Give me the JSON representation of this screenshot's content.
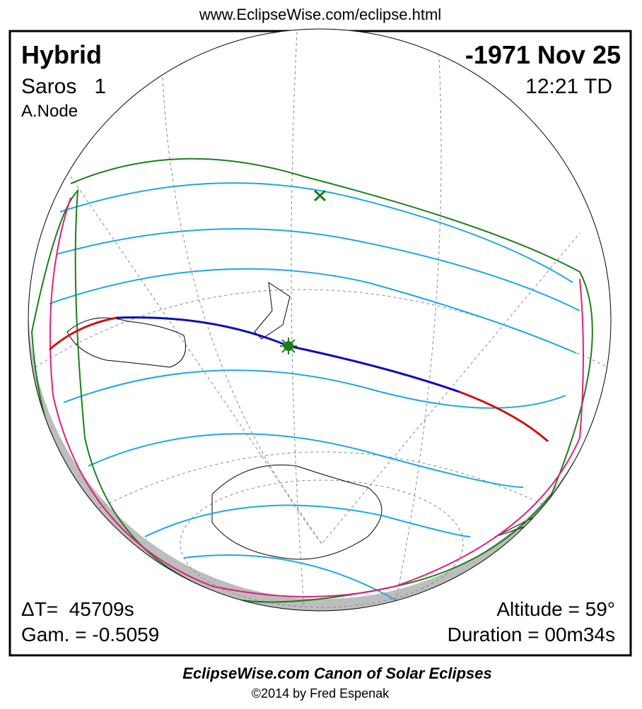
{
  "header": {
    "url": "www.EclipseWise.com/eclipse.html",
    "type": "Hybrid",
    "date": "-1971 Nov 25",
    "saros": "Saros   1",
    "time": "12:21 TD",
    "node": "A.Node"
  },
  "stats": {
    "delta_t": "ΔT=  45709s",
    "gamma": "Gam. = -0.5059",
    "altitude": "Altitude = 59°",
    "duration": "Duration = 00m34s"
  },
  "footer": {
    "canon": "EclipseWise.com Canon of Solar Eclipses",
    "copyright": "©2014 by Fred Espenak"
  }
}
